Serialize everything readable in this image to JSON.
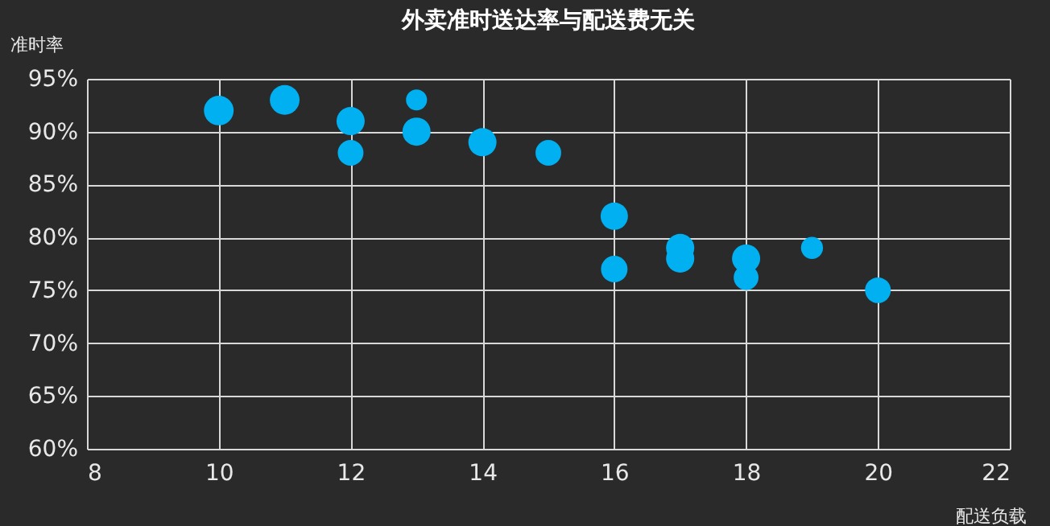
{
  "chart_data": {
    "type": "bubble",
    "title": "外卖准时送达率与配送费无关",
    "xlabel": "配送负载",
    "ylabel": "准时率",
    "x": [
      10,
      11,
      12,
      12,
      13,
      13,
      14,
      15,
      16,
      16,
      17,
      17,
      18,
      18,
      19,
      20
    ],
    "values": [
      92,
      93,
      91,
      88,
      93,
      90,
      89,
      88,
      82,
      77,
      79,
      78,
      78,
      76.2,
      79,
      75
    ],
    "sizes": [
      1,
      1,
      0.9,
      0.75,
      0.5,
      0.9,
      0.9,
      0.75,
      0.85,
      0.8,
      0.9,
      0.9,
      0.9,
      0.7,
      0.55,
      0.75
    ],
    "color": "#00b0f0",
    "marker": "circle",
    "grid": true,
    "xlim": [
      8,
      22
    ],
    "xticks": [
      8,
      10,
      12,
      14,
      16,
      18,
      20,
      22
    ],
    "ylim": [
      60,
      95
    ],
    "yticks": [
      {
        "value": 60,
        "label": "60%"
      },
      {
        "value": 65,
        "label": "65%"
      },
      {
        "value": 70,
        "label": "70%"
      },
      {
        "value": 75,
        "label": "75%"
      },
      {
        "value": 80,
        "label": "80%"
      },
      {
        "value": 85,
        "label": "85%"
      },
      {
        "value": 90,
        "label": "90%"
      },
      {
        "value": 95,
        "label": "95%"
      }
    ]
  }
}
